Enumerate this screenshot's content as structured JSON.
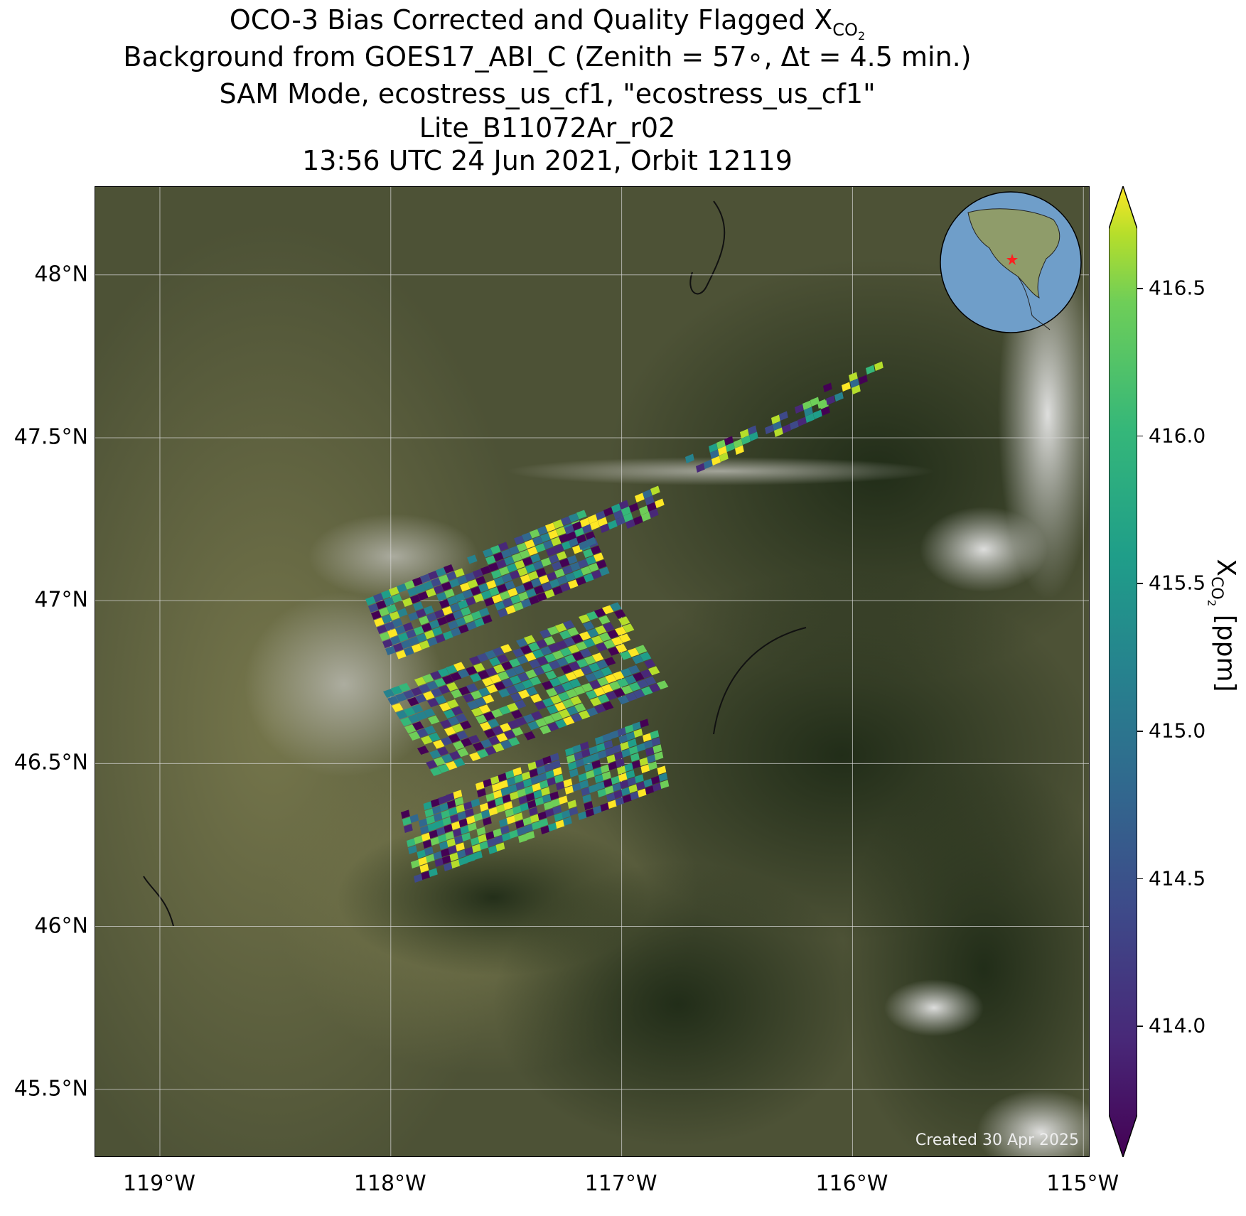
{
  "title": {
    "line1_prefix": "OCO-3 Bias Corrected and Quality Flagged X",
    "line1_sub": "CO",
    "line1_subsub": "2",
    "line2": "Background from GOES17_ABI_C (Zenith = 57∘, Δt =  4.5 min.)",
    "line3": "SAM Mode, ecostress_us_cf1, \"ecostress_us_cf1\"",
    "line4": "Lite_B11072Ar_r02",
    "line5": "13:56 UTC 24 Jun 2021, Orbit 12119"
  },
  "map": {
    "lon_range": [
      -119.28,
      -114.97
    ],
    "lat_range": [
      45.29,
      48.27
    ],
    "x_ticks": [
      "119°W",
      "118°W",
      "117°W",
      "116°W",
      "115°W"
    ],
    "x_tick_values": [
      -119,
      -118,
      -117,
      -116,
      -115
    ],
    "y_ticks": [
      "45.5°N",
      "46°N",
      "46.5°N",
      "47°N",
      "47.5°N",
      "48°N"
    ],
    "y_tick_values": [
      45.5,
      46,
      46.5,
      47,
      47.5,
      48
    ],
    "grid": true,
    "background": "satellite true-color imagery",
    "inset": "globe with red star location marker",
    "created_label": "Created 30 Apr 2025"
  },
  "colorbar": {
    "colormap": "viridis",
    "ticks": [
      "414.0",
      "414.5",
      "415.0",
      "415.5",
      "416.0",
      "416.5"
    ],
    "tick_values": [
      414.0,
      414.5,
      415.0,
      415.5,
      416.0,
      416.5
    ],
    "range": [
      413.7,
      416.7
    ],
    "extend": "both",
    "label_prefix": "X",
    "label_sub": "CO",
    "label_subsub": "2",
    "label_suffix": " [ppm]"
  }
}
